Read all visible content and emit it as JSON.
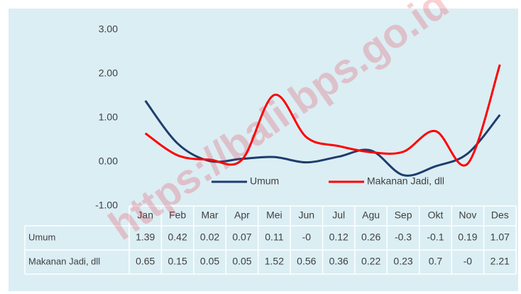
{
  "chart_data": {
    "type": "line",
    "categories": [
      "Jan",
      "Feb",
      "Mar",
      "Apr",
      "Mei",
      "Jun",
      "Jul",
      "Agu",
      "Sep",
      "Okt",
      "Nov",
      "Des"
    ],
    "series": [
      {
        "name": "Umum",
        "color": "#1f3c6e",
        "values": [
          1.39,
          0.42,
          0.02,
          0.07,
          0.11,
          -0.01,
          0.12,
          0.26,
          -0.3,
          -0.1,
          0.19,
          1.07
        ],
        "value_labels": [
          "1.39",
          "0.42",
          "0.02",
          "0.07",
          "0.11",
          "-0",
          "0.12",
          "0.26",
          "-0.3",
          "-0.1",
          "0.19",
          "1.07"
        ]
      },
      {
        "name": "Makanan Jadi, dll",
        "color": "#ff0000",
        "values": [
          0.65,
          0.15,
          0.05,
          0.05,
          1.52,
          0.56,
          0.36,
          0.22,
          0.23,
          0.7,
          -0.04,
          2.21
        ],
        "value_labels": [
          "0.65",
          "0.15",
          "0.05",
          "0.05",
          "1.52",
          "0.56",
          "0.36",
          "0.22",
          "0.23",
          "0.7",
          "-0",
          "2.21"
        ]
      }
    ],
    "ylim": [
      -1,
      3
    ],
    "yticks": [
      {
        "value": -1,
        "label": "-1.00"
      },
      {
        "value": 0,
        "label": "0.00"
      },
      {
        "value": 1,
        "label": "1.00"
      },
      {
        "value": 2,
        "label": "2.00"
      },
      {
        "value": 3,
        "label": "3.00"
      }
    ],
    "grid": false,
    "legend": "bottom",
    "smooth": true,
    "data_table": true
  },
  "watermark": "https://bali.bps.go.id"
}
